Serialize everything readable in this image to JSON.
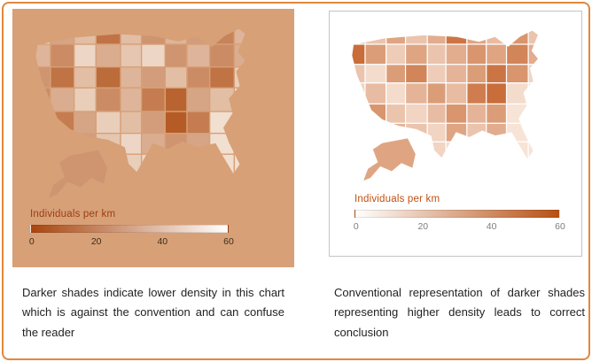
{
  "figure": {
    "border_color": "#e1873d",
    "background": "#ffffff"
  },
  "chart_data": [
    {
      "type": "choropleth",
      "region": "United States (states, with Alaska)",
      "panel_background": "#d7a077",
      "legend_title": "Individuals per km",
      "legend_ticks": [
        "0",
        "20",
        "40",
        "60"
      ],
      "legend_range": [
        0,
        60
      ],
      "legend_gradient": [
        "#a8450f",
        "#ffffff"
      ],
      "scale_direction": "reversed: darker shade = lower density",
      "color_low": "#f8efe5",
      "color_high": "#ad4a10",
      "state_border_color": "#d7a077",
      "legend_title_color": "#9e3d13",
      "tick_color": "#3f2d1c",
      "caption": "Darker shades indicate lower density in this chart which is against the convention and can confuse the reader",
      "cell_shades": [
        0.1,
        0.45,
        0.3,
        0.75,
        0.3,
        0.55,
        0.35,
        0.5,
        0.65,
        0.35,
        0.35,
        0.6,
        0.15,
        0.4,
        0.25,
        0.15,
        0.55,
        0.35,
        0.6,
        0.4,
        0.55,
        0.75,
        0.3,
        0.8,
        0.35,
        0.5,
        0.3,
        0.6,
        0.75,
        0.2,
        0.6,
        0.4,
        0.2,
        0.6,
        0.35,
        0.7,
        0.85,
        0.45,
        0.3,
        0.1,
        0.3,
        0.7,
        0.45,
        0.2,
        0.3,
        0.5,
        0.9,
        0.7,
        0.1,
        0.1,
        0.2,
        0.3,
        0.5,
        0.25,
        0.15,
        0.4,
        0.55,
        0.45,
        0.1,
        0.1,
        0.1,
        0.1,
        0.2,
        0.35,
        0.2,
        0.15,
        0.3,
        0.5,
        0.1,
        0.1
      ],
      "alaska_shade": 0.55
    },
    {
      "type": "choropleth",
      "region": "United States (states, with Alaska)",
      "panel_background": "#ffffff",
      "legend_title": "Individuals per km",
      "legend_ticks": [
        "0",
        "20",
        "40",
        "60"
      ],
      "legend_range": [
        0,
        60
      ],
      "legend_gradient": [
        "#ffffff",
        "#b85013"
      ],
      "scale_direction": "conventional: darker shade = higher density",
      "color_low": "#fdf4ec",
      "color_high": "#c0551a",
      "state_border_color": "#ffffff",
      "legend_title_color": "#c14f12",
      "tick_color": "#7d7d7d",
      "caption": "Conventional representation of darker shades representing higher density leads to correct conclusion",
      "cell_shades": [
        0.45,
        0.3,
        0.5,
        0.3,
        0.45,
        0.8,
        0.5,
        0.35,
        0.6,
        0.3,
        0.85,
        0.55,
        0.25,
        0.5,
        0.3,
        0.45,
        0.6,
        0.5,
        0.7,
        0.45,
        0.3,
        0.15,
        0.55,
        0.7,
        0.25,
        0.4,
        0.55,
        0.8,
        0.6,
        0.2,
        0.2,
        0.35,
        0.15,
        0.4,
        0.55,
        0.35,
        0.75,
        0.85,
        0.15,
        0.1,
        0.25,
        0.6,
        0.3,
        0.2,
        0.35,
        0.6,
        0.4,
        0.55,
        0.1,
        0.1,
        0.15,
        0.2,
        0.4,
        0.3,
        0.2,
        0.5,
        0.3,
        0.45,
        0.1,
        0.1,
        0.1,
        0.1,
        0.15,
        0.25,
        0.2,
        0.15,
        0.25,
        0.35,
        0.1,
        0.1
      ],
      "alaska_shade": 0.5
    }
  ]
}
